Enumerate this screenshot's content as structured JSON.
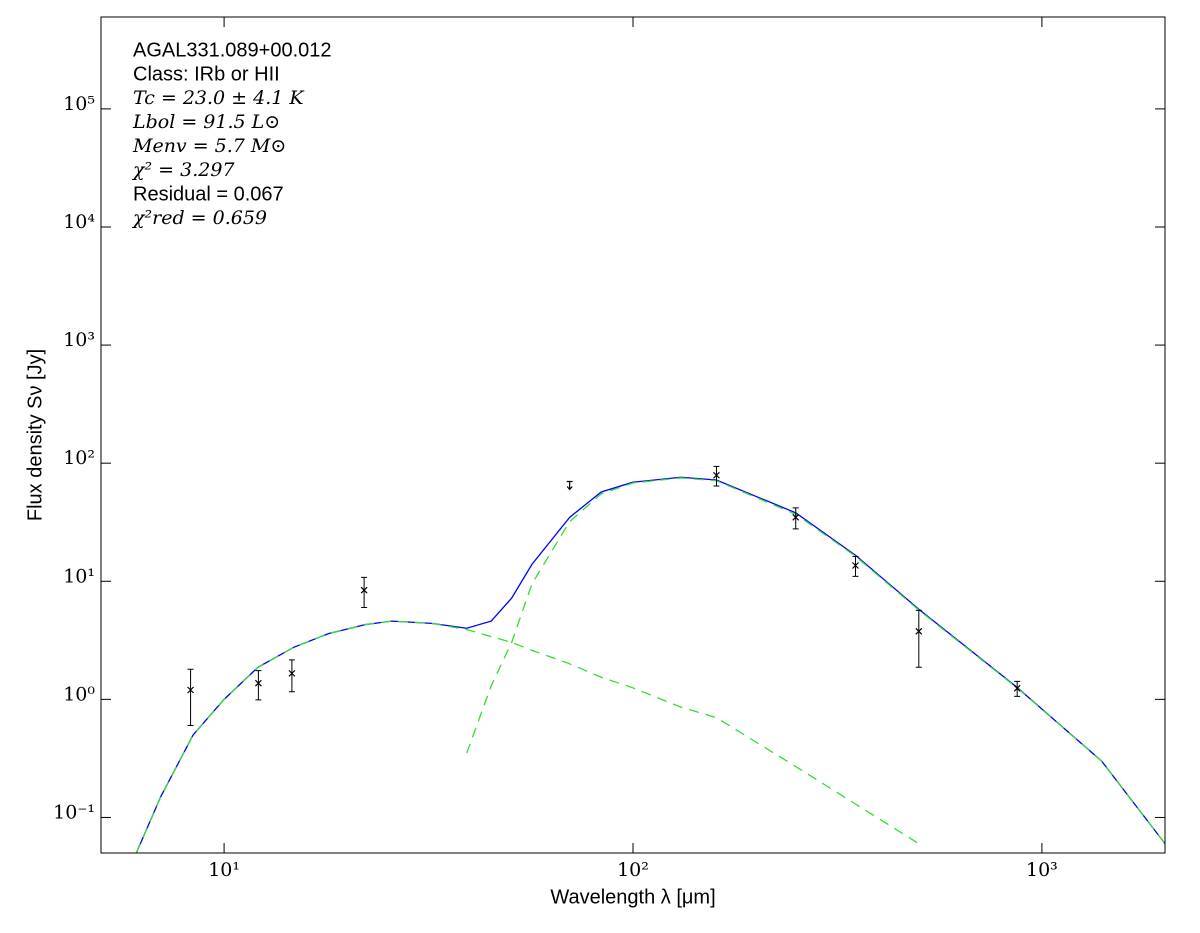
{
  "chart_data": {
    "type": "sed",
    "annotations": [
      "AGAL331.089+00.012",
      "Class: IRb or HII",
      "Tc = 23.0 ± 4.1 K",
      "Lbol = 91.5 L⊙",
      "Menv = 5.7 M⊙",
      "χ² = 3.297",
      "Residual = 0.067",
      "χ²red = 0.659"
    ],
    "x_label": "Wavelength λ [μm]",
    "y_label": "Flux density Sν [Jy]",
    "xscale": "log",
    "yscale": "log",
    "xlim": [
      5,
      2000
    ],
    "ylim": [
      0.05,
      600000
    ],
    "xticks": [
      {
        "value": 10,
        "label": "10¹"
      },
      {
        "value": 100,
        "label": "10²"
      },
      {
        "value": 1000,
        "label": "10³"
      }
    ],
    "yticks": [
      {
        "value": 0.1,
        "label": "10⁻¹"
      },
      {
        "value": 1,
        "label": "10⁰"
      },
      {
        "value": 10,
        "label": "10¹"
      },
      {
        "value": 100,
        "label": "10²"
      },
      {
        "value": 1000,
        "label": "10³"
      },
      {
        "value": 10000,
        "label": "10⁴"
      },
      {
        "value": 100000,
        "label": "10⁵"
      }
    ],
    "model_x": [
      6.1,
      7,
      8.4,
      10,
      12.1,
      14.8,
      18,
      22.2,
      25.7,
      32.2,
      39.2,
      45,
      50.5,
      56.6,
      70,
      83.6,
      100,
      131,
      160,
      250,
      350,
      500,
      870,
      1400,
      2000
    ],
    "models": [
      {
        "color": "#0000ff",
        "dashed": false,
        "values": [
          0.05,
          0.15,
          0.5,
          1.0,
          1.87,
          2.76,
          3.6,
          4.3,
          4.6,
          4.4,
          4.0,
          4.6,
          7.2,
          13.9,
          34.8,
          57,
          69,
          76,
          72,
          38,
          16.6,
          5.8,
          1.26,
          0.3,
          0.06
        ]
      },
      {
        "color": "#33dd33",
        "dashed": true,
        "values": [
          0.05,
          0.15,
          0.5,
          1.0,
          1.87,
          2.76,
          3.6,
          4.3,
          4.6,
          4.4,
          3.9,
          3.4,
          3.04,
          2.6,
          2.0,
          1.54,
          1.25,
          0.86,
          0.7,
          0.27,
          0.13,
          0.06,
          null,
          null,
          null
        ]
      },
      {
        "color": "#33dd33",
        "dashed": true,
        "values": [
          null,
          null,
          null,
          null,
          null,
          null,
          null,
          null,
          null,
          null,
          0.35,
          1.3,
          3.04,
          9.5,
          32,
          55,
          68,
          75,
          71,
          37,
          16.3,
          5.7,
          1.25,
          0.3,
          0.06
        ]
      }
    ],
    "points": {
      "color": "#000000",
      "x": [
        8.28,
        12.13,
        14.65,
        22,
        70,
        160,
        250,
        350,
        500,
        870
      ],
      "values": [
        1.2,
        1.37,
        1.66,
        8.4,
        70,
        79,
        34.8,
        13.6,
        3.77,
        1.24
      ],
      "errors": [
        0.6,
        0.38,
        0.5,
        2.4,
        null,
        15,
        7,
        2.6,
        1.9,
        0.18
      ],
      "upper_limit": [
        false,
        false,
        false,
        false,
        true,
        false,
        false,
        false,
        false,
        false
      ]
    }
  }
}
